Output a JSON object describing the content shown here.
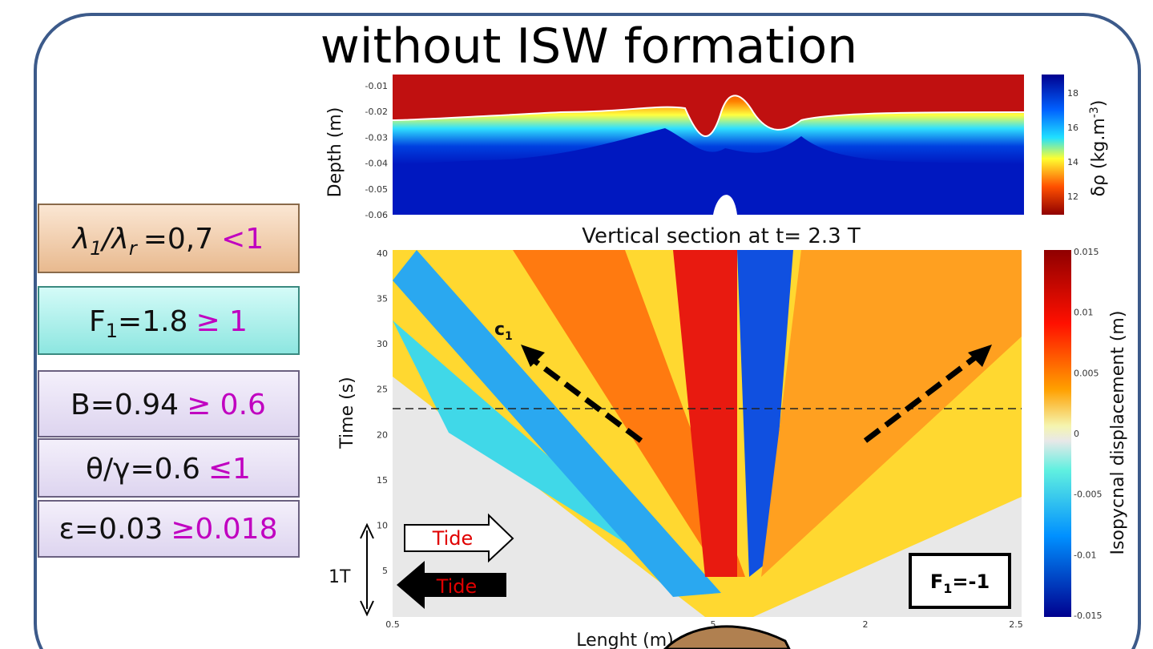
{
  "title": "without ISW formation",
  "conditions": [
    {
      "symbol": "λ",
      "sub": "1",
      "symbol2": "/λ",
      "sub2": "r",
      "value": "=0,7",
      "bound": "<1"
    },
    {
      "symbol": "F",
      "sub": "1",
      "value": "=1.8",
      "bound": "≥ 1"
    },
    {
      "value": "B=0.94",
      "bound": "≥ 0.6"
    },
    {
      "value": "θ/γ=0.6",
      "bound": "≤1"
    },
    {
      "value": "ε=0.03",
      "bound": "≥0.018"
    }
  ],
  "top_panel": {
    "ylabel": "Depth (m)",
    "yticks": [
      "-0.01",
      "-0.02",
      "-0.03",
      "-0.04",
      "-0.05",
      "-0.06"
    ],
    "colorbar": {
      "label": "δρ (kg.m",
      "label_sup": "-3",
      "label_end": ")",
      "ticks": [
        "18",
        "16",
        "14",
        "12"
      ]
    }
  },
  "section_title": "Vertical section at t= 2.3 T",
  "bottom_panel": {
    "ylabel": "Time (s)",
    "yticks": [
      "40",
      "35",
      "30",
      "25",
      "20",
      "15",
      "10",
      "5"
    ],
    "xlabel": "Lenght (m)",
    "xticks": [
      "0.5",
      "5",
      "2",
      "2.5"
    ],
    "colorbar": {
      "label": "Isopycnal displacement (m)",
      "ticks": [
        "0.015",
        "0.01",
        "0.005",
        "0",
        "-0.005",
        "-0.01",
        "-0.015"
      ]
    },
    "annotations": {
      "wave": "c",
      "wave_sub": "1",
      "tide_in": "Tide",
      "tide_out": "Tide",
      "period": "1T",
      "froude": "F",
      "froude_sub": "1",
      "froude_value": "=-1"
    }
  }
}
